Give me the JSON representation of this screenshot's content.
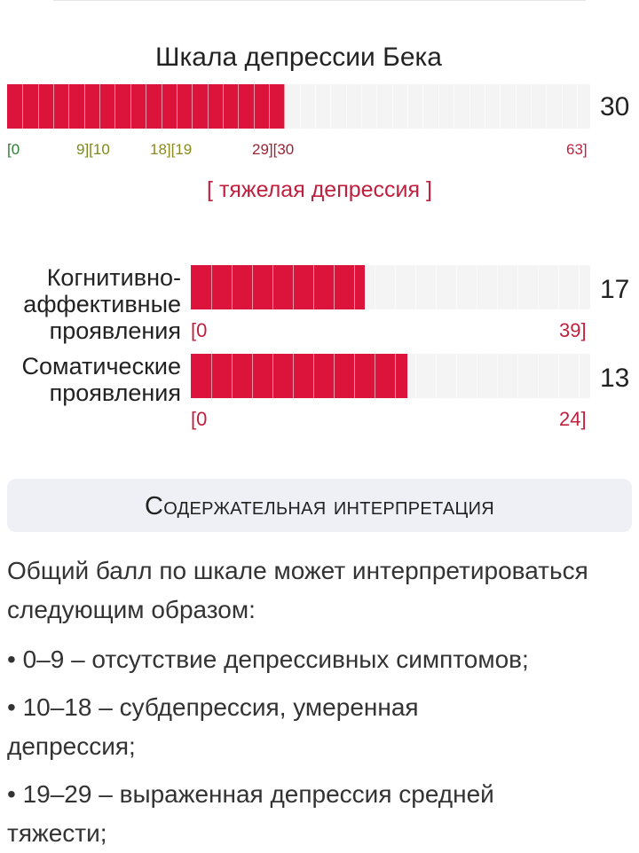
{
  "main_scale": {
    "title": "Шкала депрессии Бека",
    "value": 30,
    "max": 63,
    "value_label": "30",
    "ticks": [
      {
        "text": "[0",
        "color": "#2e7d32"
      },
      {
        "text": "9][10",
        "color": "#7a8a1a"
      },
      {
        "text": "18][19",
        "color": "#8a8a20"
      },
      {
        "text": "29][30",
        "color": "#9b2335"
      },
      {
        "text": "63]",
        "color": "#c0203e"
      }
    ],
    "verdict": "[ тяжелая депрессия ]"
  },
  "subscales": [
    {
      "label": "Когнитивно-\nаффективные\nпроявления",
      "value": 17,
      "max": 39,
      "value_label": "17",
      "min_label": "[0",
      "max_label": "39]"
    },
    {
      "label": "Соматические\nпроявления",
      "value": 13,
      "max": 24,
      "value_label": "13",
      "min_label": "[0",
      "max_label": "24]"
    }
  ],
  "colors": {
    "fill": "#dc143c",
    "empty": "#f4f4f4"
  },
  "interpretation": {
    "heading": "Содержательная интерпретация",
    "intro": "Общий балл по шкале может интерпретироваться следующим образом:",
    "items": [
      "• 0–9 – отсутствие депрессивных симптомов;",
      "• 10–18 – субдепрессия, умеренная депрессия;",
      "• 19–29 – выраженная депрессия средней тяжести;"
    ]
  }
}
